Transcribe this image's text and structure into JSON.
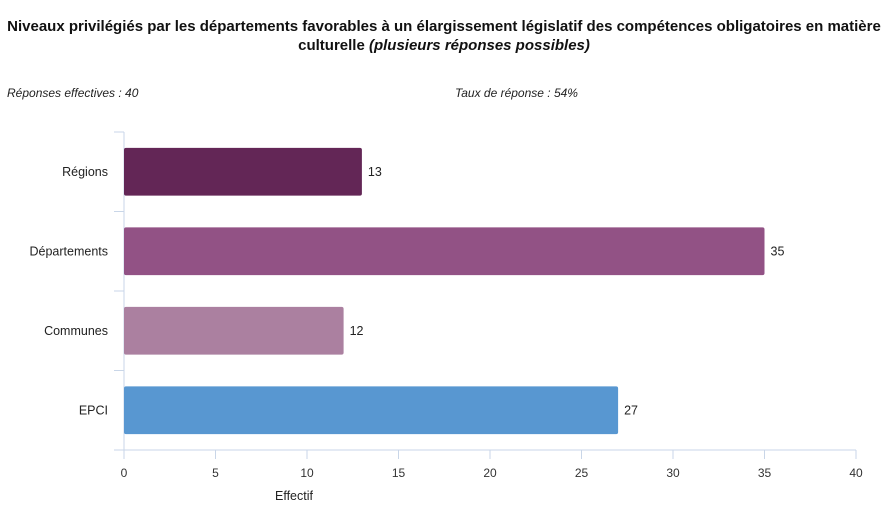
{
  "header": {
    "title_main": "Niveaux privilégiés par les départements favorables à un élargissement législatif des compétences obligatoires en matière culturelle",
    "title_sub": "(plusieurs réponses possibles)"
  },
  "meta": {
    "responses": "Réponses effectives : 40",
    "rate": "Taux de réponse : 54%"
  },
  "chart_data": {
    "type": "bar",
    "orientation": "horizontal",
    "categories": [
      "Régions",
      "Départements",
      "Communes",
      "EPCI"
    ],
    "values": [
      13,
      35,
      12,
      27
    ],
    "colors": [
      "#632656",
      "#925285",
      "#ab80a0",
      "#5897d1"
    ],
    "xlabel": "Effectif",
    "ylabel": "",
    "xlim": [
      0,
      40
    ],
    "xticks": [
      0,
      5,
      10,
      15,
      20,
      25,
      30,
      35,
      40
    ],
    "grid": false,
    "axis_color": "#c9d6e8"
  }
}
